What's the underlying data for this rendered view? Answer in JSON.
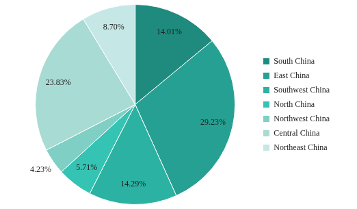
{
  "chart_data": {
    "type": "pie",
    "categories": [
      "South China",
      "East China",
      "Southwest China",
      "North China",
      "Northwest China",
      "Central China",
      "Northeast China"
    ],
    "values": [
      14.01,
      29.23,
      14.29,
      5.71,
      4.23,
      23.83,
      8.7
    ],
    "value_labels": [
      "14.01%",
      "29.23%",
      "14.29%",
      "5.71%",
      "4.23%",
      "23.83%",
      "8.70%"
    ],
    "colors": [
      "#1f8a7e",
      "#26a092",
      "#2bb2a2",
      "#35c3b3",
      "#7fcfc4",
      "#a7dbd3",
      "#c5e7e5"
    ],
    "data_labels": true,
    "legend": "right"
  }
}
